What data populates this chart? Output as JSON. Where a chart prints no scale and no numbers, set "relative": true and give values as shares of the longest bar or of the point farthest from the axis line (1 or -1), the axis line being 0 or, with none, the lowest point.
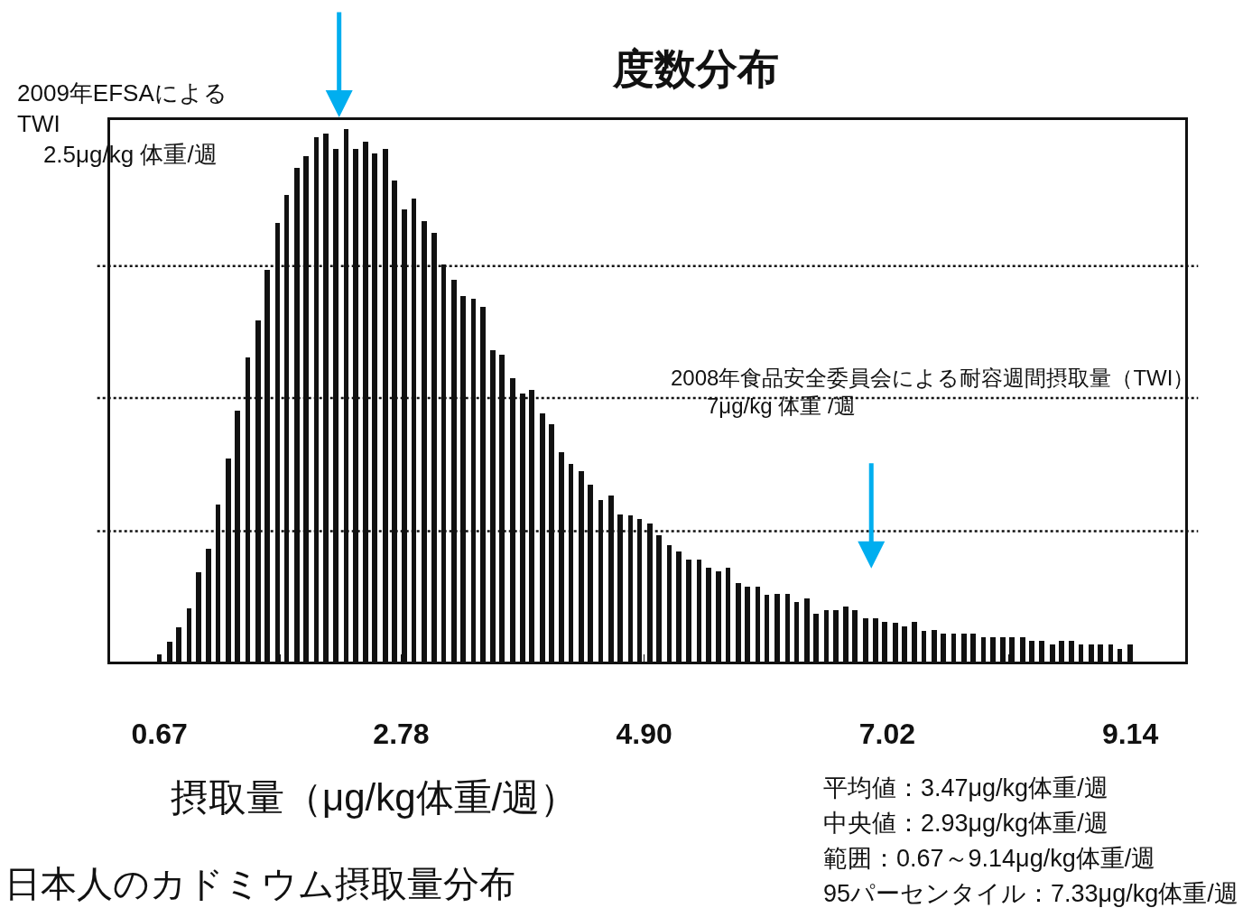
{
  "chart_data": {
    "type": "bar",
    "title": "度数分布",
    "xlabel": "摂取量（μg/kg体重/週）",
    "relative": true,
    "color": "#111111",
    "x": [
      0.67,
      0.76,
      0.84,
      0.93,
      1.01,
      1.1,
      1.18,
      1.27,
      1.35,
      1.44,
      1.53,
      1.61,
      1.7,
      1.78,
      1.87,
      1.95,
      2.04,
      2.12,
      2.21,
      2.3,
      2.38,
      2.47,
      2.55,
      2.64,
      2.72,
      2.81,
      2.89,
      2.98,
      3.07,
      3.15,
      3.24,
      3.32,
      3.41,
      3.49,
      3.58,
      3.66,
      3.75,
      3.84,
      3.92,
      4.01,
      4.09,
      4.18,
      4.26,
      4.35,
      4.43,
      4.52,
      4.61,
      4.69,
      4.78,
      4.86,
      4.95,
      5.03,
      5.12,
      5.2,
      5.29,
      5.38,
      5.46,
      5.55,
      5.63,
      5.72,
      5.8,
      5.89,
      5.97,
      6.06,
      6.15,
      6.23,
      6.32,
      6.4,
      6.49,
      6.57,
      6.66,
      6.74,
      6.83,
      6.92,
      7.0,
      7.09,
      7.17,
      7.26,
      7.34,
      7.43,
      7.51,
      7.6,
      7.69,
      7.77,
      7.86,
      7.94,
      8.03,
      8.11,
      8.2,
      8.28,
      8.37,
      8.46,
      8.54,
      8.63,
      8.71,
      8.8,
      8.88,
      8.97,
      9.05,
      9.14
    ],
    "values": [
      0.013,
      0.037,
      0.065,
      0.1,
      0.167,
      0.212,
      0.295,
      0.382,
      0.472,
      0.572,
      0.64,
      0.735,
      0.824,
      0.876,
      0.927,
      0.949,
      0.985,
      0.992,
      0.963,
      1.0,
      0.963,
      0.977,
      0.955,
      0.962,
      0.903,
      0.85,
      0.87,
      0.828,
      0.805,
      0.746,
      0.717,
      0.687,
      0.681,
      0.666,
      0.585,
      0.576,
      0.532,
      0.504,
      0.511,
      0.466,
      0.446,
      0.393,
      0.371,
      0.357,
      0.333,
      0.304,
      0.312,
      0.276,
      0.274,
      0.267,
      0.259,
      0.237,
      0.218,
      0.206,
      0.192,
      0.192,
      0.177,
      0.169,
      0.177,
      0.148,
      0.141,
      0.141,
      0.125,
      0.127,
      0.127,
      0.112,
      0.118,
      0.089,
      0.097,
      0.097,
      0.103,
      0.097,
      0.081,
      0.081,
      0.075,
      0.073,
      0.066,
      0.074,
      0.058,
      0.06,
      0.053,
      0.053,
      0.053,
      0.052,
      0.045,
      0.045,
      0.045,
      0.046,
      0.046,
      0.039,
      0.039,
      0.033,
      0.039,
      0.039,
      0.033,
      0.033,
      0.033,
      0.032,
      0.023,
      0.032
    ],
    "xlim": [
      0.24,
      9.62
    ],
    "xticks": [
      0.67,
      {
        "value": 1.725,
        "label": null
      },
      2.78,
      {
        "value": 3.84,
        "label": null
      },
      {
        "value": 4.9,
        "label": "4.90"
      },
      {
        "value": 5.96,
        "label": null
      },
      7.02,
      {
        "value": 8.08,
        "label": null
      },
      9.14
    ],
    "ref_lines": [
      {
        "axis": "y",
        "value": 0.245,
        "line_style": "dotted",
        "color": "#111111"
      },
      {
        "axis": "y",
        "value": 0.495,
        "line_style": "dotted",
        "color": "#111111"
      },
      {
        "axis": "y",
        "value": 0.743,
        "line_style": "dotted",
        "color": "#111111"
      }
    ],
    "annotations": [
      "2009年EFSAによる\nTWI\n    2.5μg/kg 体重/週",
      "2008年食品安全委員会による耐容週間摂取量（TWI）\n      7μg/kg 体重 /週",
      "平均値：3.47μg/kg体重/週",
      "中央値：2.93μg/kg体重/週",
      "範囲：0.67～9.14μg/kg体重/週",
      "95パーセンタイル：7.33μg/kg体重/週",
      "日本人のカドミウム摂取量分布"
    ]
  }
}
